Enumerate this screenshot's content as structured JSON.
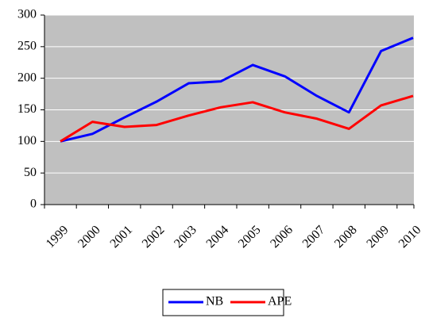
{
  "chart_data": {
    "type": "line",
    "categories": [
      "1999",
      "2000",
      "2001",
      "2002",
      "2003",
      "2004",
      "2005",
      "2006",
      "2007",
      "2008",
      "2009",
      "2010"
    ],
    "series": [
      {
        "name": "NB",
        "color": "#0000ff",
        "values": [
          100,
          112,
          138,
          163,
          192,
          195,
          221,
          203,
          172,
          146,
          243,
          264
        ]
      },
      {
        "name": "APE",
        "color": "#ff0000",
        "values": [
          100,
          131,
          123,
          126,
          141,
          154,
          162,
          146,
          136,
          120,
          157,
          172
        ]
      }
    ],
    "ylim": [
      0,
      300
    ],
    "yticks": [
      0,
      50,
      100,
      150,
      200,
      250,
      300
    ],
    "grid": true,
    "legend": "bottom"
  }
}
